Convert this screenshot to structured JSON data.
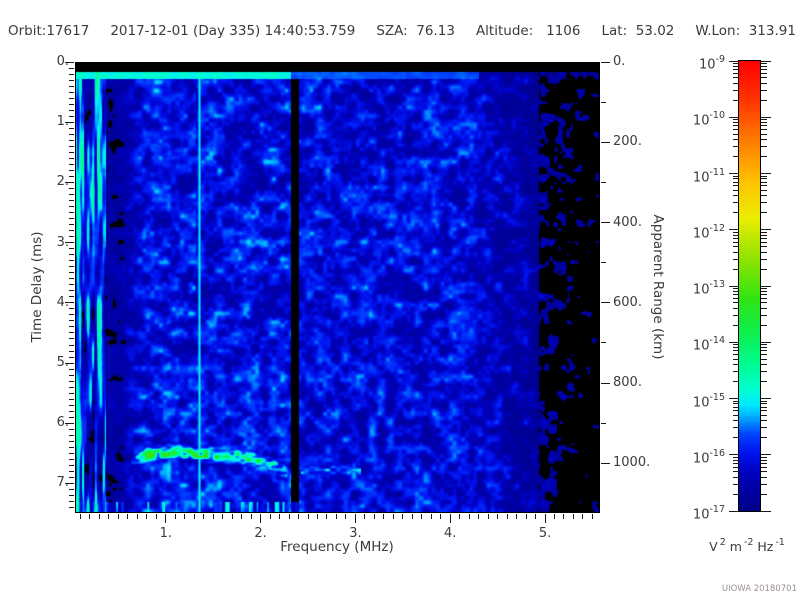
{
  "header": {
    "orbit": "Orbit:17617",
    "datetime": "2017-12-01 (Day 335) 14:40:53.759",
    "sza": "SZA:  76.13",
    "altitude": "Altitude:   1106",
    "lat": "Lat:  53.02",
    "wlon": "W.Lon:  313.91"
  },
  "footer": {
    "credit": "UIOWA 20180701"
  },
  "chart_data": {
    "type": "heatmap",
    "subtype": "radar-sounder-ionogram-spectrogram",
    "x_axis": {
      "label": "Frequency (MHz)",
      "min": 0.042,
      "max": 5.58,
      "major_ticks": [
        1,
        2,
        3,
        4,
        5
      ],
      "minor_step": 0.1
    },
    "y_axis": {
      "label": "Time Delay (ms)",
      "min": 0,
      "max": 7.49,
      "major_ticks": [
        0,
        1,
        2,
        3,
        4,
        5,
        6,
        7
      ],
      "minor_step": 0.1,
      "direction": "down"
    },
    "y2_axis": {
      "label": "Apparent Range (km)",
      "major_ticks": [
        0,
        200,
        400,
        600,
        800,
        1000
      ],
      "minor_step": 100,
      "km_per_ms": 150
    },
    "colorbar": {
      "scale": "log",
      "exponents": [
        "-9",
        "-10",
        "-11",
        "-12",
        "-13",
        "-14",
        "-15",
        "-16",
        "-17"
      ],
      "unit_parts": [
        {
          "base": "V",
          "exp": "2"
        },
        {
          "base": "m",
          "exp": "-2"
        },
        {
          "base": "Hz",
          "exp": "-1"
        }
      ],
      "stops": [
        {
          "u": 0.0,
          "c": "#000088"
        },
        {
          "u": 0.08,
          "c": "#0000bb"
        },
        {
          "u": 0.13,
          "c": "#0015f2"
        },
        {
          "u": 0.17,
          "c": "#0045ff"
        },
        {
          "u": 0.21,
          "c": "#00b0ff"
        },
        {
          "u": 0.235,
          "c": "#00eaff"
        },
        {
          "u": 0.27,
          "c": "#00ffd0"
        },
        {
          "u": 0.33,
          "c": "#00fc8d"
        },
        {
          "u": 0.4,
          "c": "#10ef4a"
        },
        {
          "u": 0.47,
          "c": "#30e515"
        },
        {
          "u": 0.55,
          "c": "#86e300"
        },
        {
          "u": 0.65,
          "c": "#eaed00"
        },
        {
          "u": 0.73,
          "c": "#ffc400"
        },
        {
          "u": 0.81,
          "c": "#ff8800"
        },
        {
          "u": 0.91,
          "c": "#ff3800"
        },
        {
          "u": 1.0,
          "c": "#ff0000"
        }
      ]
    },
    "features": {
      "seed": 1337,
      "blackout_delay_ms": 0.15,
      "transmit_pulse": {
        "delay_range_ms": [
          0.15,
          0.27
        ],
        "bright_to_mhz": 2.31,
        "visible_to_mhz": 4.3
      },
      "interference_line_mhz": 1.35,
      "stripe_region_to_mhz": 0.36,
      "absorption_bands_mhz": [
        [
          0.36,
          0.54
        ],
        [
          2.31,
          2.4
        ]
      ],
      "noise_fade_start_mhz": 4.2,
      "ionosphere_echo": {
        "trace_mhz_ms": [
          [
            0.6,
            6.65
          ],
          [
            0.72,
            6.55
          ],
          [
            0.85,
            6.5
          ],
          [
            1.05,
            6.47
          ],
          [
            1.3,
            6.49
          ],
          [
            1.55,
            6.52
          ],
          [
            1.8,
            6.56
          ],
          [
            2.0,
            6.62
          ],
          [
            2.18,
            6.72
          ],
          [
            2.3,
            6.85
          ]
        ],
        "green_band_mhz": [
          0.78,
          1.85
        ],
        "faint_extension_mhz": [
          2.42,
          3.05
        ],
        "faint_extension_delay_ms": 6.78
      },
      "bottom_streak_delay_ms": 7.3
    }
  }
}
